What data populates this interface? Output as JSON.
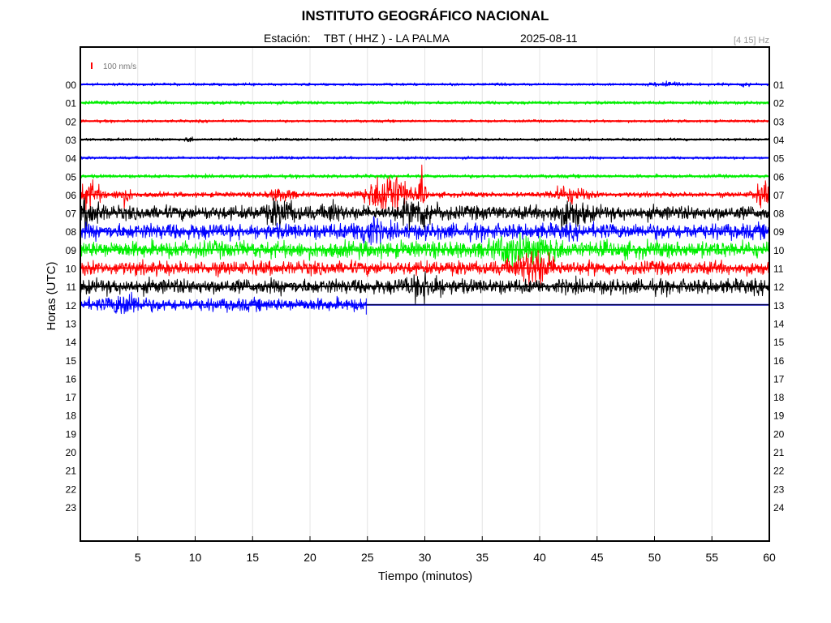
{
  "header": {
    "title": "INSTITUTO GEOGRÁFICO NACIONAL",
    "station_label": "Estación:",
    "station": "TBT ( HHZ ) - LA PALMA",
    "date": "2025-08-11",
    "filter_band": "[4 15] Hz"
  },
  "chart_data": {
    "type": "line",
    "title": "INSTITUTO GEOGRÁFICO NACIONAL",
    "subtitle": "Estación:  TBT ( HHZ ) - LA PALMA    2025-08-11",
    "xlabel": "Tiempo (minutos)",
    "ylabel": "Horas (UTC)",
    "xlim": [
      0,
      60
    ],
    "x_ticks": [
      5,
      10,
      15,
      20,
      25,
      30,
      35,
      40,
      45,
      50,
      55,
      60
    ],
    "left_tick_labels": [
      "00",
      "01",
      "02",
      "03",
      "04",
      "05",
      "06",
      "07",
      "08",
      "09",
      "10",
      "11",
      "12",
      "13",
      "14",
      "15",
      "16",
      "17",
      "18",
      "19",
      "20",
      "21",
      "22",
      "23"
    ],
    "right_tick_labels": [
      "01",
      "02",
      "03",
      "04",
      "05",
      "06",
      "07",
      "08",
      "09",
      "10",
      "11",
      "12",
      "13",
      "14",
      "15",
      "16",
      "17",
      "18",
      "19",
      "20",
      "21",
      "22",
      "23",
      "24"
    ],
    "grid": "vertical",
    "scale_bar_label": "100 nm/s",
    "scale_bar_color": "#ff0000",
    "trace_colors": [
      "#0000ff",
      "#00ee00",
      "#ff0000",
      "#000000"
    ],
    "traces": [
      {
        "hour": 0,
        "amplitude": 1.5,
        "end_minute": 60,
        "events": [
          {
            "minute": 51,
            "amp": 3,
            "width": 1
          },
          {
            "minute": 58,
            "amp": 2,
            "width": 0.5
          }
        ]
      },
      {
        "hour": 1,
        "amplitude": 1.8,
        "end_minute": 60,
        "events": []
      },
      {
        "hour": 2,
        "amplitude": 1.5,
        "end_minute": 60,
        "events": []
      },
      {
        "hour": 3,
        "amplitude": 1.5,
        "end_minute": 60,
        "events": [
          {
            "minute": 9.5,
            "amp": 2.5,
            "width": 0.4
          }
        ]
      },
      {
        "hour": 4,
        "amplitude": 1.5,
        "end_minute": 60,
        "events": []
      },
      {
        "hour": 5,
        "amplitude": 2.0,
        "end_minute": 60,
        "events": []
      },
      {
        "hour": 6,
        "amplitude": 2.8,
        "end_minute": 60,
        "events": [
          {
            "minute": 0.8,
            "amp": 14,
            "width": 1.0
          },
          {
            "minute": 3.8,
            "amp": 9,
            "width": 0.6
          },
          {
            "minute": 17.5,
            "amp": 6,
            "width": 1.0
          },
          {
            "minute": 26.8,
            "amp": 24,
            "width": 1.8
          },
          {
            "minute": 29.8,
            "amp": 22,
            "width": 0.25
          },
          {
            "minute": 42.5,
            "amp": 8,
            "width": 1.5
          },
          {
            "minute": 59.5,
            "amp": 12,
            "width": 0.8
          }
        ]
      },
      {
        "hour": 7,
        "amplitude": 7.5,
        "end_minute": 60,
        "events": [
          {
            "minute": 0.8,
            "amp": 10,
            "width": 1.0
          },
          {
            "minute": 17.5,
            "amp": 10,
            "width": 1.2
          },
          {
            "minute": 22,
            "amp": 8,
            "width": 0.6
          },
          {
            "minute": 29.5,
            "amp": 12,
            "width": 1.5
          },
          {
            "minute": 42.5,
            "amp": 11,
            "width": 1.5
          }
        ]
      },
      {
        "hour": 8,
        "amplitude": 8.5,
        "end_minute": 60,
        "events": [
          {
            "minute": 25,
            "amp": 12,
            "width": 1.0
          }
        ]
      },
      {
        "hour": 9,
        "amplitude": 9.0,
        "end_minute": 60,
        "events": [
          {
            "minute": 37.5,
            "amp": 12,
            "width": 1.2
          },
          {
            "minute": 40.5,
            "amp": 10,
            "width": 1.2
          }
        ]
      },
      {
        "hour": 10,
        "amplitude": 7.5,
        "end_minute": 60,
        "events": [
          {
            "minute": 39.5,
            "amp": 16,
            "width": 1.5
          }
        ]
      },
      {
        "hour": 11,
        "amplitude": 8.0,
        "end_minute": 60,
        "events": [
          {
            "minute": 30,
            "amp": 10,
            "width": 1.5
          }
        ]
      },
      {
        "hour": 12,
        "amplitude": 7.0,
        "end_minute": 24.9,
        "events": [
          {
            "minute": 4,
            "amp": 9,
            "width": 1.2
          }
        ]
      }
    ]
  }
}
